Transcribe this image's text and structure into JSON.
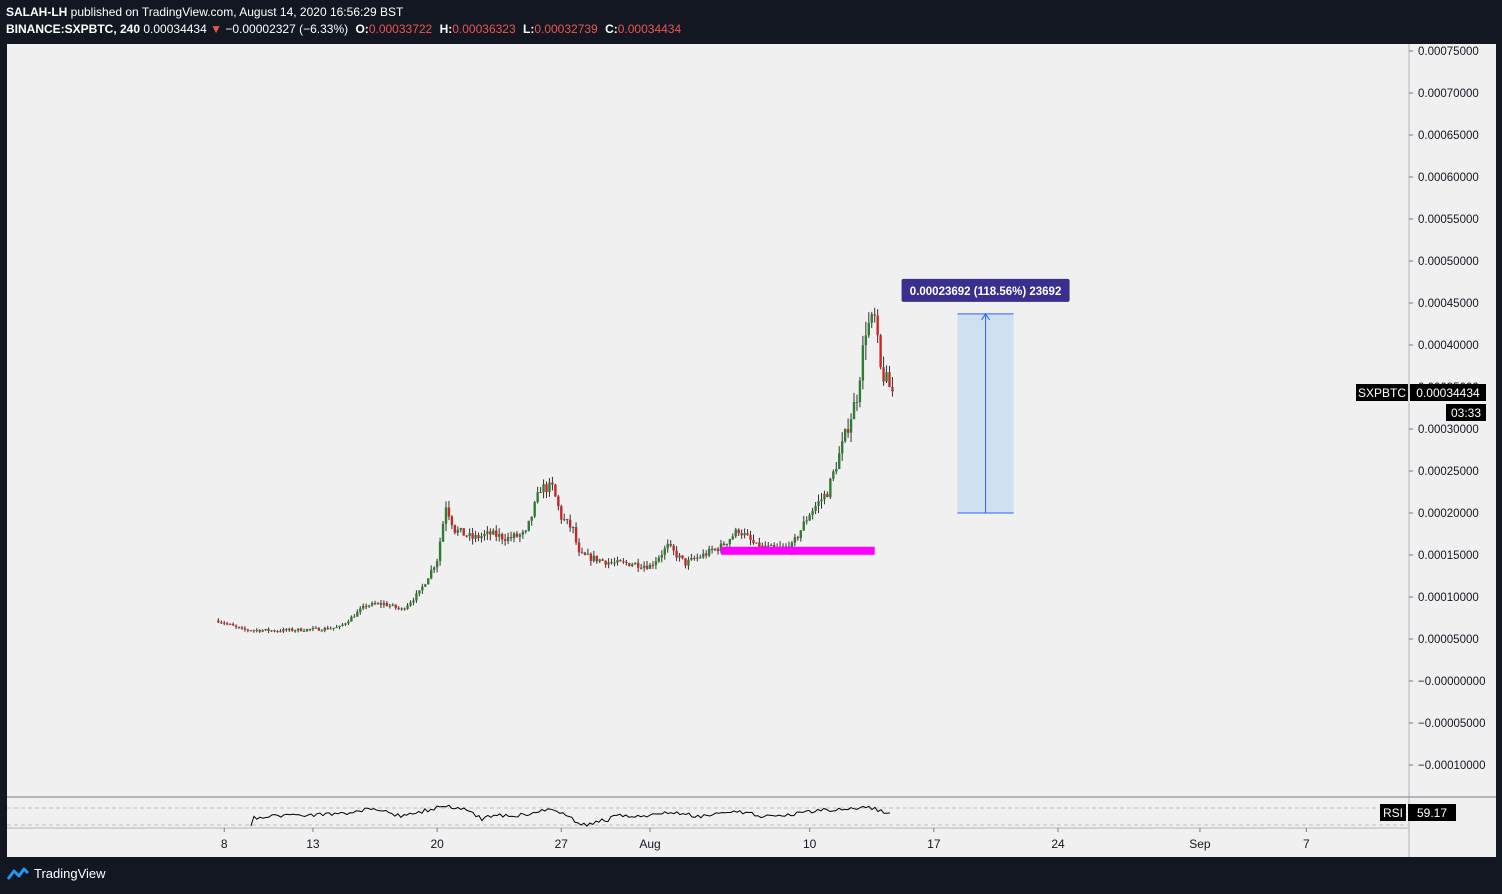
{
  "header": {
    "author": "SALAH-LH",
    "published_text": " published on TradingView.com, August 14, 2020 16:56:29 BST",
    "symbol_interval": "BINANCE:SXPBTC, 240",
    "last_price": "0.00034434",
    "change_arrow": "▼",
    "change": "−0.00002327 (−6.33%)",
    "open_label": "O:",
    "open": "0.00033722",
    "high_label": "H:",
    "high": "0.00036323",
    "low_label": "L:",
    "low": "0.00032739",
    "close_label": "C:",
    "close": "0.00034434"
  },
  "price_axis": {
    "ticks": [
      "0.00075000",
      "0.00070000",
      "0.00065000",
      "0.00060000",
      "0.00055000",
      "0.00050000",
      "0.00045000",
      "0.00040000",
      "0.00035000",
      "0.00030000",
      "0.00025000",
      "0.00020000",
      "0.00015000",
      "0.00010000",
      "0.00005000",
      "−0.00000000",
      "−0.00005000",
      "−0.00010000"
    ]
  },
  "time_axis": {
    "ticks": [
      "8",
      "13",
      "20",
      "27",
      "Aug",
      "10",
      "17",
      "24",
      "Sep",
      "7"
    ]
  },
  "price_badge": {
    "symbol": "SXPBTC",
    "price": "0.00034434",
    "countdown": "03:33"
  },
  "measure": {
    "label": "0.00023692 (118.56%) 23692",
    "from": 0.0002,
    "to": 0.000437
  },
  "support_line": {
    "price": 0.000155,
    "color": "#ff00ff"
  },
  "rsi": {
    "label": "RSI",
    "value": "59.17"
  },
  "footer": {
    "brand": "TradingView"
  },
  "colors": {
    "up": "#26a69a",
    "down": "#ef5350",
    "up_body": "#2e7d32",
    "down_body": "#c62828",
    "bg": "#f0f0f0",
    "frame": "#131722",
    "measure_fill": "#cfe0f0",
    "measure_line": "#2962ff",
    "label_bg": "#3a2f8f"
  },
  "chart_data": {
    "type": "candlestick",
    "title": "BINANCE:SXPBTC, 240",
    "ylim": [
      -0.00012,
      0.000757
    ],
    "x_start": "2020-07-07",
    "x_end": "2020-09-10",
    "x_labels": [
      "8",
      "13",
      "20",
      "27",
      "Aug",
      "10",
      "17",
      "24",
      "Sep",
      "7"
    ],
    "path": [
      [
        "2020-07-07T16:00",
        7.2e-05
      ],
      [
        "2020-07-09T00:00",
        6.1e-05
      ],
      [
        "2020-07-11T00:00",
        6e-05
      ],
      [
        "2020-07-13T12:00",
        6.2e-05
      ],
      [
        "2020-07-14T12:00",
        6.4e-05
      ],
      [
        "2020-07-16T00:00",
        9e-05
      ],
      [
        "2020-07-17T00:00",
        9.2e-05
      ],
      [
        "2020-07-18T00:00",
        8.5e-05
      ],
      [
        "2020-07-19T00:00",
        0.000105
      ],
      [
        "2020-07-20T00:00",
        0.000145
      ],
      [
        "2020-07-20T12:00",
        0.00021
      ],
      [
        "2020-07-21T00:00",
        0.00018
      ],
      [
        "2020-07-22T00:00",
        0.00017
      ],
      [
        "2020-07-23T00:00",
        0.000175
      ],
      [
        "2020-07-24T00:00",
        0.00017
      ],
      [
        "2020-07-25T00:00",
        0.000175
      ],
      [
        "2020-07-25T20:00",
        0.00023
      ],
      [
        "2020-07-26T12:00",
        0.00023
      ],
      [
        "2020-07-27T00:00",
        0.000195
      ],
      [
        "2020-07-27T16:00",
        0.00018
      ],
      [
        "2020-07-28T00:00",
        0.00015
      ],
      [
        "2020-07-29T00:00",
        0.000145
      ],
      [
        "2020-07-30T00:00",
        0.00014
      ],
      [
        "2020-07-31T00:00",
        0.00014
      ],
      [
        "2020-08-01T00:00",
        0.000137
      ],
      [
        "2020-08-02T00:00",
        0.00016
      ],
      [
        "2020-08-03T00:00",
        0.00014
      ],
      [
        "2020-08-04T00:00",
        0.00015
      ],
      [
        "2020-08-05T00:00",
        0.00016
      ],
      [
        "2020-08-06T00:00",
        0.00018
      ],
      [
        "2020-08-07T00:00",
        0.00016
      ],
      [
        "2020-08-08T00:00",
        0.000157
      ],
      [
        "2020-08-09T00:00",
        0.00016
      ],
      [
        "2020-08-10T00:00",
        0.0002
      ],
      [
        "2020-08-11T00:00",
        0.000225
      ],
      [
        "2020-08-11T20:00",
        0.00028
      ],
      [
        "2020-08-12T16:00",
        0.00034
      ],
      [
        "2020-08-13T04:00",
        0.00042
      ],
      [
        "2020-08-13T16:00",
        0.00043
      ],
      [
        "2020-08-14T00:00",
        0.00037
      ],
      [
        "2020-08-14T16:00",
        0.000344
      ]
    ]
  }
}
